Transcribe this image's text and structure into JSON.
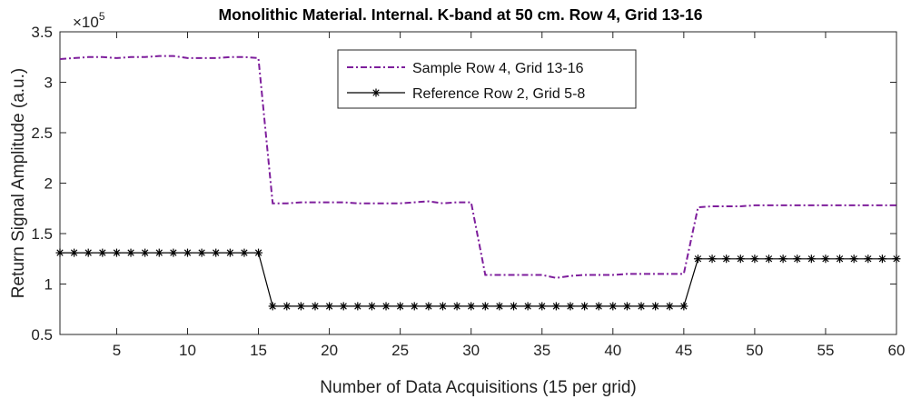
{
  "chart_data": {
    "type": "line",
    "title": "Monolithic Material. Internal. K-band at 50 cm. Row 4, Grid 13-16",
    "xlabel": "Number of Data Acquisitions (15 per grid)",
    "ylabel": "Return Signal Amplitude (a.u.)",
    "y_exponent_label": "×10",
    "y_exponent_power": "5",
    "xlim": [
      1,
      60
    ],
    "ylim": [
      0.5,
      3.5
    ],
    "xticks": [
      5,
      10,
      15,
      20,
      25,
      30,
      35,
      40,
      45,
      50,
      55,
      60
    ],
    "yticks": [
      0.5,
      1,
      1.5,
      2,
      2.5,
      3,
      3.5
    ],
    "grid": false,
    "legend_position": "top-center",
    "x": [
      1,
      2,
      3,
      4,
      5,
      6,
      7,
      8,
      9,
      10,
      11,
      12,
      13,
      14,
      15,
      16,
      17,
      18,
      19,
      20,
      21,
      22,
      23,
      24,
      25,
      26,
      27,
      28,
      29,
      30,
      31,
      32,
      33,
      34,
      35,
      36,
      37,
      38,
      39,
      40,
      41,
      42,
      43,
      44,
      45,
      46,
      47,
      48,
      49,
      50,
      51,
      52,
      53,
      54,
      55,
      56,
      57,
      58,
      59,
      60
    ],
    "series": [
      {
        "name": "Sample Row 4, Grid 13-16",
        "color": "#7E1E9C",
        "line_style": "dash-dot",
        "marker": "none",
        "values": [
          3.23,
          3.24,
          3.25,
          3.25,
          3.24,
          3.25,
          3.25,
          3.26,
          3.26,
          3.24,
          3.24,
          3.24,
          3.25,
          3.25,
          3.24,
          1.8,
          1.8,
          1.81,
          1.81,
          1.81,
          1.81,
          1.8,
          1.8,
          1.8,
          1.8,
          1.81,
          1.82,
          1.8,
          1.81,
          1.81,
          1.09,
          1.09,
          1.09,
          1.09,
          1.09,
          1.06,
          1.08,
          1.09,
          1.09,
          1.09,
          1.1,
          1.1,
          1.1,
          1.1,
          1.1,
          1.76,
          1.77,
          1.77,
          1.77,
          1.78,
          1.78,
          1.78,
          1.78,
          1.78,
          1.78,
          1.78,
          1.78,
          1.78,
          1.78,
          1.78
        ]
      },
      {
        "name": "Reference Row 2, Grid 5-8",
        "color": "#000000",
        "line_style": "solid",
        "marker": "asterisk",
        "values": [
          1.31,
          1.31,
          1.31,
          1.31,
          1.31,
          1.31,
          1.31,
          1.31,
          1.31,
          1.31,
          1.31,
          1.31,
          1.31,
          1.31,
          1.31,
          0.78,
          0.78,
          0.78,
          0.78,
          0.78,
          0.78,
          0.78,
          0.78,
          0.78,
          0.78,
          0.78,
          0.78,
          0.78,
          0.78,
          0.78,
          0.78,
          0.78,
          0.78,
          0.78,
          0.78,
          0.78,
          0.78,
          0.78,
          0.78,
          0.78,
          0.78,
          0.78,
          0.78,
          0.78,
          0.78,
          1.25,
          1.25,
          1.25,
          1.25,
          1.25,
          1.25,
          1.25,
          1.25,
          1.25,
          1.25,
          1.25,
          1.25,
          1.25,
          1.25,
          1.25
        ]
      }
    ]
  }
}
